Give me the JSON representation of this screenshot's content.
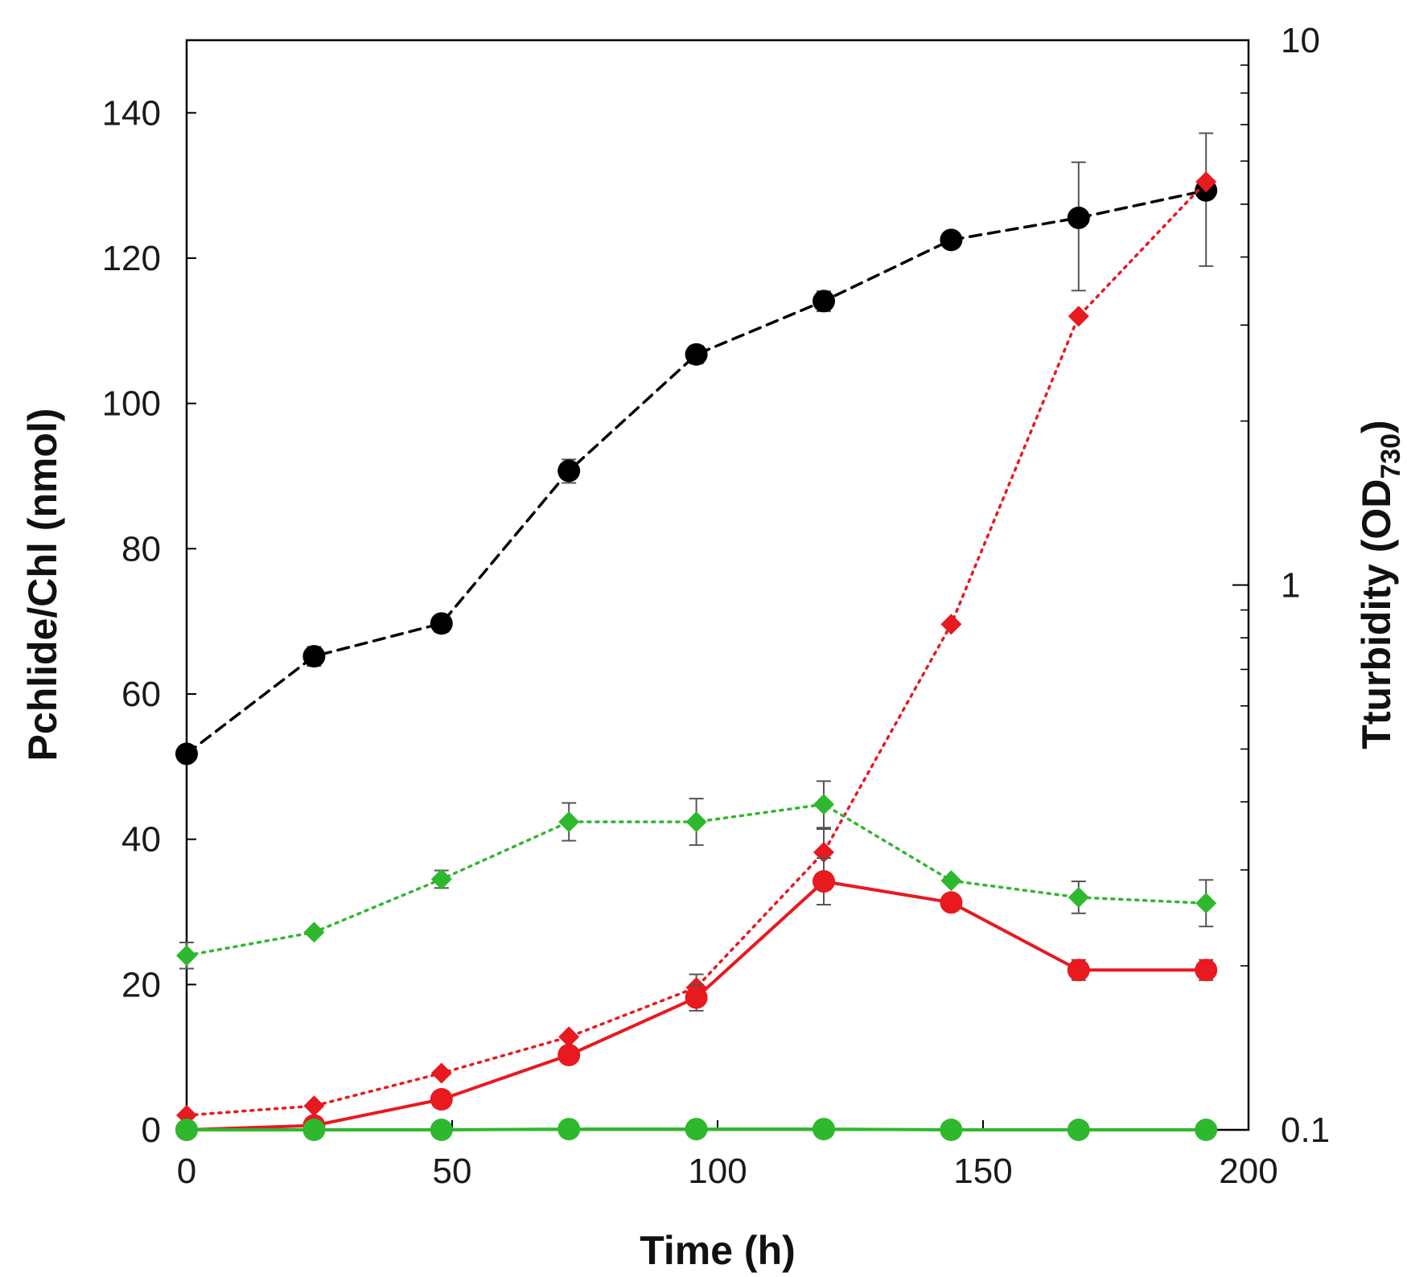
{
  "chart_data": {
    "type": "line",
    "title": "",
    "xlabel": "Time (h)",
    "ylabel": "Pchlide/Chl (nmol)",
    "y2label_main": "Tturbidity (OD",
    "y2label_sub": "730",
    "y2label_close": ")",
    "xlim": [
      0,
      200
    ],
    "ylim": [
      0,
      150
    ],
    "y2lim": [
      0.1,
      10
    ],
    "y2scale": "log",
    "xticks": [
      0,
      50,
      100,
      150,
      200
    ],
    "xtick_labels": [
      "0",
      "50",
      "100",
      "150",
      "200"
    ],
    "yticks": [
      0,
      20,
      40,
      60,
      80,
      100,
      120,
      140
    ],
    "ytick_labels": [
      "0",
      "20",
      "40",
      "60",
      "80",
      "100",
      "120",
      "140"
    ],
    "y2ticks": [
      0.1,
      1,
      10
    ],
    "y2tick_labels": [
      "0.1",
      "1",
      "10"
    ],
    "legend": "none",
    "grid": false,
    "series": [
      {
        "name": "Turbidity (OD730)",
        "axis": "right",
        "color": "#000000",
        "marker": "circle",
        "line": "dashed",
        "x": [
          0,
          24,
          48,
          72,
          96,
          120,
          144,
          168,
          192
        ],
        "y": [
          0.49,
          0.74,
          0.85,
          1.62,
          2.65,
          3.32,
          4.3,
          4.72,
          5.3
        ],
        "yerr": [
          null,
          0.03,
          0.03,
          0.08,
          0.1,
          0.14,
          null,
          1.25,
          1.45
        ]
      },
      {
        "name": "Pchlide (diamond, red)",
        "axis": "left",
        "color": "#e8191f",
        "marker": "diamond",
        "line": "dotted",
        "x": [
          0,
          24,
          48,
          72,
          96,
          120,
          144,
          168,
          192
        ],
        "y": [
          2,
          3.3,
          7.8,
          12.8,
          19.6,
          38.2,
          69.6,
          112,
          130.5
        ],
        "yerr": [
          null,
          null,
          null,
          null,
          1.8,
          3.2,
          null,
          null,
          null
        ]
      },
      {
        "name": "Chl (diamond, green)",
        "axis": "left",
        "color": "#2eb82e",
        "marker": "diamond",
        "line": "dotted",
        "x": [
          0,
          24,
          48,
          72,
          96,
          120,
          144,
          168,
          192
        ],
        "y": [
          24,
          27.2,
          34.5,
          42.4,
          42.4,
          44.8,
          34.3,
          32,
          31.2
        ],
        "yerr": [
          1.8,
          null,
          1.2,
          2.6,
          3.2,
          3.2,
          null,
          2.2,
          3.2
        ]
      },
      {
        "name": "Pchlide (circle, red)",
        "axis": "left",
        "color": "#e8191f",
        "marker": "circle",
        "line": "solid",
        "x": [
          0,
          24,
          48,
          72,
          96,
          120,
          144,
          168,
          192
        ],
        "y": [
          0,
          0.6,
          4.2,
          10.3,
          18.2,
          34.2,
          31.3,
          22,
          22
        ],
        "yerr": [
          null,
          null,
          null,
          null,
          1.8,
          3.2,
          null,
          1.4,
          1.4
        ]
      },
      {
        "name": "Chl (circle, green)",
        "axis": "left",
        "color": "#2eb82e",
        "marker": "circle",
        "line": "solid",
        "x": [
          0,
          24,
          48,
          72,
          96,
          120,
          144,
          168,
          192
        ],
        "y": [
          0,
          0,
          0,
          0.1,
          0.1,
          0.1,
          0,
          0,
          0
        ],
        "yerr": [
          null,
          null,
          null,
          null,
          null,
          null,
          null,
          null,
          null
        ]
      }
    ]
  }
}
